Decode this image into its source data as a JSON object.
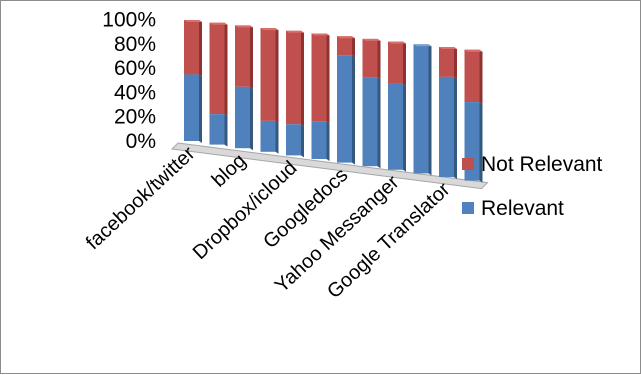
{
  "chart_data": {
    "type": "bar",
    "stacked": "100%",
    "three_d": true,
    "categories": [
      "facebook/twitter",
      "",
      "blog",
      "",
      "Dropbox/icloud",
      "",
      "Googledocs",
      "",
      "Yahoo Messanger",
      "",
      "Google Translator",
      ""
    ],
    "series": [
      {
        "name": "Relevant",
        "color": "#4f81bd",
        "values": [
          55,
          25,
          50,
          25,
          25,
          30,
          85,
          70,
          67,
          100,
          77,
          60
        ]
      },
      {
        "name": "Not Relevant",
        "color": "#c0504d",
        "values": [
          45,
          75,
          50,
          75,
          75,
          70,
          15,
          30,
          33,
          0,
          23,
          40
        ]
      }
    ],
    "y_ticks": [
      "0%",
      "20%",
      "40%",
      "60%",
      "80%",
      "100%"
    ],
    "ylim": [
      0,
      100
    ],
    "legend": {
      "position": "right",
      "entries": [
        "Not Relevant",
        "Relevant"
      ]
    },
    "grid": false
  }
}
